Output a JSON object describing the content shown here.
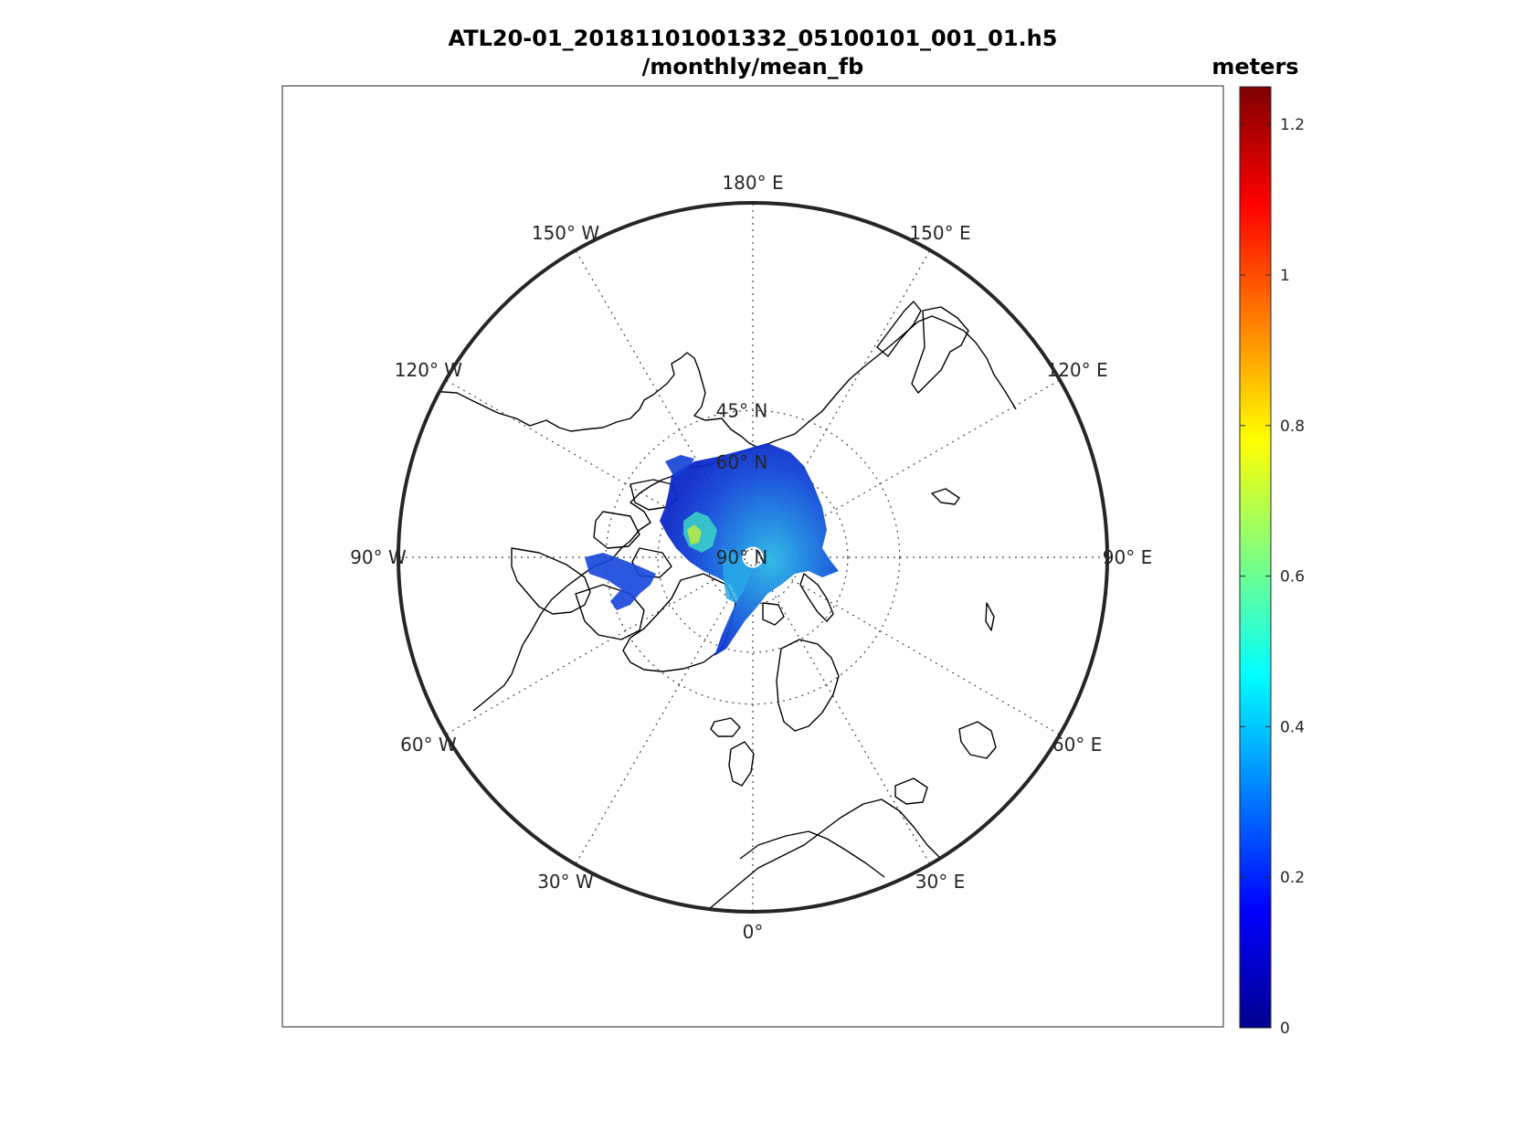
{
  "figure": {
    "title_line1": "ATL20-01_20181101001332_05100101_001_01.h5",
    "title_line2": "/monthly/mean_fb"
  },
  "map": {
    "projection": "polar stereographic (north)",
    "center_label": "90° N",
    "longitude_labels": [
      {
        "lon": 180,
        "text": "180° E"
      },
      {
        "lon": 150,
        "text": "150° E"
      },
      {
        "lon": 120,
        "text": "120° E"
      },
      {
        "lon": 90,
        "text": "90° E"
      },
      {
        "lon": 60,
        "text": "60° E"
      },
      {
        "lon": 30,
        "text": "30° E"
      },
      {
        "lon": 0,
        "text": "0°"
      },
      {
        "lon": -30,
        "text": "30° W"
      },
      {
        "lon": -60,
        "text": "60° W"
      },
      {
        "lon": -90,
        "text": "90° W"
      },
      {
        "lon": -120,
        "text": "120° W"
      },
      {
        "lon": -150,
        "text": "150° W"
      }
    ],
    "latitude_labels": [
      {
        "lat": 45,
        "text": "45° N"
      },
      {
        "lat": 60,
        "text": "60° N"
      },
      {
        "lat": 90,
        "text": "90° N"
      }
    ],
    "grid": "dotted",
    "data_description": "sea-ice freeboard swath over Arctic Ocean, mostly 0.1–0.4 m, up to ~0.7 m north of Greenland/Canadian archipelago"
  },
  "colorbar": {
    "label": "meters",
    "colormap": "jet",
    "range": [
      0,
      1.25
    ],
    "ticks": [
      0,
      0.2,
      0.4,
      0.6,
      0.8,
      1,
      1.2
    ],
    "tick_labels": [
      "0",
      "0.2",
      "0.4",
      "0.6",
      "0.8",
      "1",
      "1.2"
    ]
  },
  "colors": {
    "coastline": "#000000",
    "grid": "#444444",
    "frame": "#262626"
  }
}
